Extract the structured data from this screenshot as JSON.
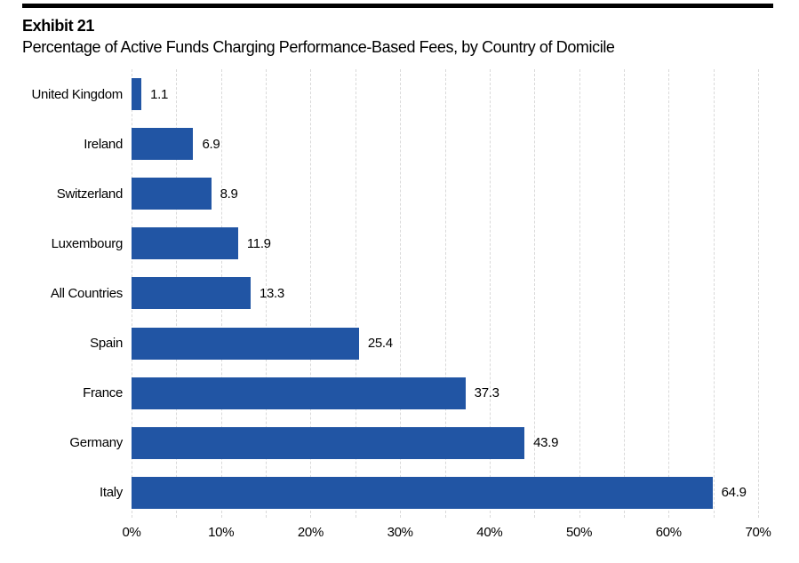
{
  "header": {
    "exhibit": "Exhibit 21",
    "title": "Percentage of Active Funds Charging Performance-Based Fees, by Country of Domicile"
  },
  "chart_data": {
    "type": "bar",
    "orientation": "horizontal",
    "title": "Percentage of Active Funds Charging Performance-Based Fees, by Country of Domicile",
    "categories": [
      "United Kingdom",
      "Ireland",
      "Switzerland",
      "Luxembourg",
      "All Countries",
      "Spain",
      "France",
      "Germany",
      "Italy"
    ],
    "values": [
      1.1,
      6.9,
      8.9,
      11.9,
      13.3,
      25.4,
      37.3,
      43.9,
      64.9
    ],
    "value_labels": [
      "1.1",
      "6.9",
      "8.9",
      "11.9",
      "13.3",
      "25.4",
      "37.3",
      "43.9",
      "64.9"
    ],
    "xlabel": "",
    "ylabel": "",
    "xlim": [
      0,
      70
    ],
    "x_tick_step": 10,
    "gridline_step": 5,
    "x_ticks": [
      "0%",
      "10%",
      "20%",
      "30%",
      "40%",
      "50%",
      "60%",
      "70%"
    ],
    "grid": "vertical-dashed",
    "legend": "none",
    "bar_color": "#2155a4",
    "gridline_color": "#d9d9d9",
    "rule_color": "#000000"
  }
}
